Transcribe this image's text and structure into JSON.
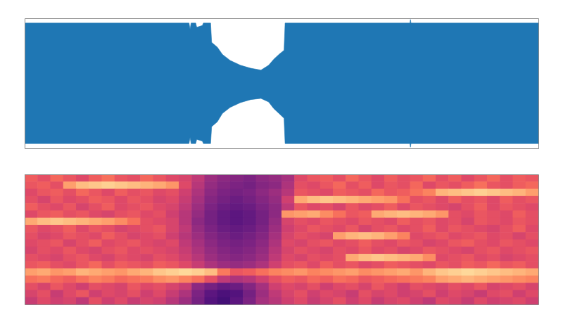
{
  "chart_data": [
    {
      "type": "area",
      "x": [
        0,
        32.0,
        32.2,
        32.4,
        33.3,
        33.5,
        34.6,
        34.8,
        36.2,
        36.4,
        37.5,
        38.5,
        40,
        42,
        44,
        46,
        47.5,
        48.5,
        49.5,
        50.5,
        50.7,
        75.0,
        75.1,
        75.2,
        100
      ],
      "values": [
        1,
        1,
        0.9,
        1,
        1,
        0.93,
        0.96,
        1,
        1,
        0.68,
        0.6,
        0.48,
        0.38,
        0.3,
        0.25,
        0.22,
        0.3,
        0.4,
        0.48,
        0.55,
        1,
        1,
        1.06,
        1,
        1
      ],
      "lower": [
        -1,
        -1,
        -0.9,
        -1,
        -1,
        -0.93,
        -0.96,
        -1,
        -1,
        -0.72,
        -0.64,
        -0.5,
        -0.4,
        -0.32,
        -0.27,
        -0.25,
        -0.31,
        -0.42,
        -0.5,
        -0.58,
        -1,
        -1,
        -1.06,
        -1,
        -1
      ],
      "color": "#1f77b4",
      "xlim": [
        0,
        100
      ],
      "ylim": [
        -1.08,
        1.08
      ],
      "tick_labels": false
    },
    {
      "type": "heatmap",
      "cells": [
        [
          66,
          62,
          68,
          64,
          60,
          66,
          70,
          64,
          62,
          68,
          64,
          60,
          58,
          52,
          44,
          40,
          38,
          36,
          40,
          42,
          46,
          60,
          64,
          66,
          62,
          68,
          64,
          60,
          66,
          62,
          64,
          68,
          62,
          66,
          60,
          64,
          68,
          62,
          66,
          64
        ],
        [
          64,
          66,
          62,
          80,
          86,
          88,
          90,
          88,
          86,
          84,
          82,
          78,
          60,
          50,
          42,
          38,
          36,
          34,
          38,
          40,
          48,
          62,
          60,
          64,
          68,
          62,
          66,
          60,
          64,
          62,
          68,
          60,
          64,
          62,
          66,
          70,
          64,
          62,
          66,
          68
        ],
        [
          60,
          64,
          66,
          62,
          68,
          64,
          60,
          66,
          62,
          64,
          60,
          62,
          56,
          48,
          40,
          36,
          34,
          36,
          40,
          44,
          50,
          64,
          62,
          60,
          66,
          64,
          62,
          68,
          64,
          66,
          70,
          74,
          84,
          86,
          88,
          90,
          88,
          86,
          84,
          80
        ],
        [
          62,
          58,
          64,
          60,
          62,
          66,
          64,
          60,
          64,
          62,
          58,
          60,
          54,
          46,
          38,
          34,
          32,
          34,
          38,
          42,
          56,
          82,
          86,
          88,
          86,
          84,
          82,
          80,
          78,
          70,
          62,
          64,
          60,
          66,
          62,
          64,
          60,
          66,
          62,
          64
        ],
        [
          66,
          62,
          60,
          64,
          58,
          62,
          66,
          60,
          62,
          64,
          60,
          58,
          52,
          44,
          36,
          32,
          30,
          32,
          36,
          40,
          52,
          64,
          60,
          62,
          58,
          64,
          60,
          62,
          66,
          60,
          64,
          62,
          60,
          58,
          62,
          66,
          60,
          64,
          62,
          60
        ],
        [
          60,
          64,
          66,
          62,
          64,
          60,
          58,
          62,
          64,
          60,
          62,
          56,
          50,
          42,
          34,
          30,
          28,
          30,
          34,
          40,
          78,
          80,
          82,
          76,
          70,
          64,
          66,
          82,
          84,
          86,
          84,
          82,
          78,
          62,
          60,
          64,
          62,
          60,
          66,
          62
        ],
        [
          82,
          86,
          88,
          86,
          84,
          82,
          80,
          76,
          70,
          62,
          60,
          58,
          50,
          40,
          34,
          30,
          28,
          30,
          34,
          42,
          58,
          62,
          60,
          64,
          62,
          60,
          64,
          62,
          60,
          66,
          62,
          64,
          60,
          62,
          58,
          64,
          62,
          60,
          64,
          62
        ],
        [
          64,
          60,
          62,
          66,
          60,
          64,
          62,
          58,
          60,
          62,
          64,
          58,
          52,
          42,
          36,
          32,
          30,
          32,
          36,
          44,
          56,
          60,
          64,
          62,
          60,
          64,
          58,
          62,
          64,
          60,
          62,
          66,
          60,
          64,
          62,
          60,
          58,
          62,
          66,
          60
        ],
        [
          62,
          58,
          60,
          64,
          62,
          60,
          66,
          62,
          58,
          60,
          62,
          56,
          50,
          44,
          38,
          34,
          32,
          34,
          38,
          46,
          58,
          62,
          60,
          58,
          80,
          84,
          86,
          84,
          80,
          74,
          60,
          62,
          64,
          60,
          62,
          64,
          60,
          62,
          58,
          62
        ],
        [
          60,
          62,
          64,
          58,
          62,
          66,
          60,
          62,
          64,
          60,
          58,
          60,
          52,
          46,
          40,
          36,
          34,
          36,
          40,
          48,
          60,
          58,
          62,
          64,
          60,
          62,
          66,
          62,
          60,
          64,
          62,
          58,
          60,
          64,
          66,
          62,
          60,
          64,
          62,
          60
        ],
        [
          58,
          62,
          60,
          64,
          60,
          58,
          62,
          64,
          60,
          62,
          60,
          58,
          54,
          48,
          42,
          38,
          36,
          38,
          42,
          50,
          58,
          62,
          60,
          58,
          62,
          60,
          64,
          60,
          62,
          58,
          60,
          64,
          62,
          60,
          58,
          62,
          64,
          60,
          62,
          64
        ],
        [
          62,
          60,
          58,
          62,
          64,
          60,
          58,
          62,
          60,
          58,
          62,
          60,
          56,
          50,
          44,
          40,
          38,
          40,
          44,
          52,
          60,
          58,
          62,
          60,
          62,
          82,
          86,
          88,
          86,
          84,
          82,
          76,
          60,
          62,
          64,
          60,
          62,
          58,
          60,
          62
        ],
        [
          64,
          66,
          62,
          60,
          64,
          68,
          62,
          66,
          64,
          62,
          66,
          64,
          60,
          54,
          48,
          44,
          42,
          44,
          48,
          56,
          62,
          64,
          60,
          66,
          62,
          64,
          60,
          62,
          66,
          64,
          62,
          60,
          64,
          62,
          66,
          64,
          68,
          64,
          66,
          62
        ],
        [
          80,
          82,
          78,
          80,
          84,
          82,
          80,
          78,
          82,
          84,
          88,
          90,
          92,
          90,
          86,
          72,
          64,
          66,
          70,
          74,
          76,
          78,
          74,
          76,
          78,
          80,
          76,
          78,
          80,
          82,
          78,
          84,
          88,
          90,
          92,
          90,
          88,
          86,
          84,
          82
        ],
        [
          70,
          72,
          68,
          66,
          70,
          74,
          72,
          68,
          70,
          72,
          76,
          78,
          74,
          70,
          62,
          52,
          48,
          50,
          56,
          62,
          66,
          64,
          68,
          66,
          70,
          68,
          64,
          66,
          68,
          70,
          72,
          74,
          80,
          82,
          84,
          82,
          80,
          78,
          76,
          74
        ],
        [
          62,
          58,
          64,
          60,
          56,
          62,
          60,
          58,
          64,
          60,
          62,
          58,
          54,
          40,
          34,
          30,
          32,
          38,
          46,
          56,
          60,
          58,
          62,
          56,
          60,
          62,
          58,
          64,
          60,
          56,
          62,
          60,
          58,
          62,
          60,
          64,
          58,
          60,
          62,
          58
        ],
        [
          58,
          62,
          54,
          60,
          64,
          56,
          60,
          58,
          62,
          56,
          60,
          54,
          48,
          36,
          28,
          24,
          26,
          34,
          44,
          52,
          58,
          62,
          56,
          60,
          58,
          54,
          62,
          58,
          60,
          56,
          58,
          62,
          56,
          60,
          58,
          54,
          60,
          62,
          56,
          60
        ],
        [
          54,
          60,
          56,
          58,
          52,
          62,
          56,
          60,
          54,
          58,
          56,
          50,
          44,
          34,
          26,
          22,
          28,
          36,
          46,
          50,
          56,
          60,
          54,
          58,
          62,
          56,
          60,
          54,
          58,
          60,
          56,
          52,
          60,
          58,
          54,
          60,
          56,
          58,
          60,
          56
        ]
      ],
      "zlim": [
        0,
        100
      ],
      "color": "magma",
      "tick_labels": false
    }
  ]
}
